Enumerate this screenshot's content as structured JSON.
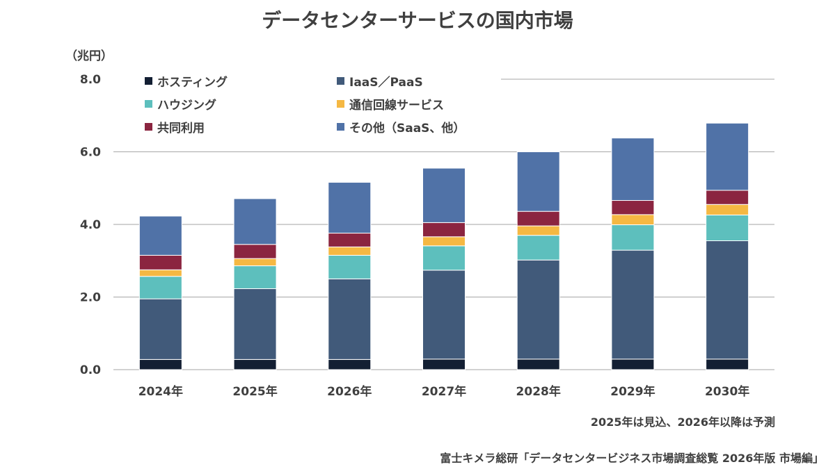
{
  "chart_data": {
    "type": "bar",
    "stacked": true,
    "title": "データセンターサービスの国内市場",
    "ylabel": "（兆円）",
    "ylim": [
      0,
      8
    ],
    "yticks": [
      "0.0",
      "2.0",
      "4.0",
      "6.0",
      "8.0"
    ],
    "categories": [
      "2024年",
      "2025年",
      "2026年",
      "2027年",
      "2028年",
      "2029年",
      "2030年"
    ],
    "series": [
      {
        "name": "ホスティング",
        "color": "#131f33",
        "values": [
          0.28,
          0.28,
          0.28,
          0.29,
          0.29,
          0.29,
          0.29
        ]
      },
      {
        "name": "IaaS／PaaS",
        "color": "#415a7a",
        "values": [
          1.67,
          1.95,
          2.22,
          2.45,
          2.73,
          3.0,
          3.26
        ]
      },
      {
        "name": "ハウジング",
        "color": "#5dbfbd",
        "values": [
          0.62,
          0.63,
          0.65,
          0.67,
          0.68,
          0.7,
          0.71
        ]
      },
      {
        "name": "通信回線サービス",
        "color": "#f5b843",
        "values": [
          0.18,
          0.2,
          0.23,
          0.25,
          0.26,
          0.28,
          0.29
        ]
      },
      {
        "name": "共同利用",
        "color": "#8b2540",
        "values": [
          0.4,
          0.39,
          0.38,
          0.39,
          0.4,
          0.39,
          0.39
        ]
      },
      {
        "name": "その他（SaaS、他）",
        "color": "#5072a7",
        "values": [
          1.08,
          1.26,
          1.4,
          1.5,
          1.64,
          1.72,
          1.85
        ]
      }
    ],
    "legend_position": "top-left",
    "grid": true,
    "annotation_note": "2025年は見込、2026年以降は予測",
    "source": "富士キメラ総研「データセンタービジネス市場調査総覧 2026年版 市場編」"
  }
}
